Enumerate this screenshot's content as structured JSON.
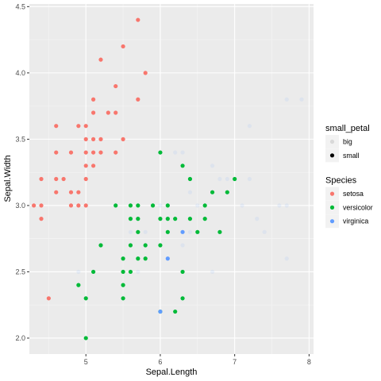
{
  "chart_data": {
    "type": "scatter",
    "xlabel": "Sepal.Length",
    "ylabel": "Sepal.Width",
    "xlim": [
      4.24,
      8.06
    ],
    "ylim": [
      1.88,
      4.52
    ],
    "x_ticks": [
      5,
      6,
      7,
      8
    ],
    "y_ticks": [
      2.0,
      2.5,
      3.0,
      3.5,
      4.0,
      4.5
    ],
    "x_tick_labels": [
      "5",
      "6",
      "7",
      "8"
    ],
    "y_tick_labels": [
      "2.0",
      "2.5",
      "3.0",
      "3.5",
      "4.0",
      "4.5"
    ],
    "grid": true,
    "background": "#ebebeb",
    "legend_position": "right",
    "legends": [
      {
        "title": "small_petal",
        "entries": [
          {
            "label": "big",
            "color": "#000000",
            "alpha": 0.1
          },
          {
            "label": "small",
            "color": "#000000",
            "alpha": 1
          }
        ]
      },
      {
        "title": "Species",
        "entries": [
          {
            "label": "setosa",
            "color": "#F8766D"
          },
          {
            "label": "versicolor",
            "color": "#00BA38"
          },
          {
            "label": "virginica",
            "color": "#619CFF"
          }
        ]
      }
    ],
    "series": [
      {
        "name": "setosa",
        "color": "#F8766D",
        "small_petal": "small",
        "points": [
          [
            4.3,
            3.0
          ],
          [
            4.4,
            2.9
          ],
          [
            4.4,
            3.0
          ],
          [
            4.4,
            3.2
          ],
          [
            4.5,
            2.3
          ],
          [
            4.6,
            3.1
          ],
          [
            4.6,
            3.2
          ],
          [
            4.6,
            3.4
          ],
          [
            4.6,
            3.6
          ],
          [
            4.7,
            3.2
          ],
          [
            4.8,
            3.0
          ],
          [
            4.8,
            3.1
          ],
          [
            4.8,
            3.4
          ],
          [
            4.9,
            3.0
          ],
          [
            4.9,
            3.1
          ],
          [
            4.9,
            3.6
          ],
          [
            5.0,
            3.0
          ],
          [
            5.0,
            3.2
          ],
          [
            5.0,
            3.3
          ],
          [
            5.0,
            3.4
          ],
          [
            5.0,
            3.5
          ],
          [
            5.0,
            3.6
          ],
          [
            5.1,
            3.3
          ],
          [
            5.1,
            3.4
          ],
          [
            5.1,
            3.5
          ],
          [
            5.1,
            3.7
          ],
          [
            5.1,
            3.8
          ],
          [
            5.2,
            3.4
          ],
          [
            5.2,
            3.5
          ],
          [
            5.2,
            4.1
          ],
          [
            5.3,
            3.7
          ],
          [
            5.4,
            3.4
          ],
          [
            5.4,
            3.7
          ],
          [
            5.4,
            3.9
          ],
          [
            5.5,
            3.5
          ],
          [
            5.5,
            4.2
          ],
          [
            5.7,
            3.8
          ],
          [
            5.7,
            4.4
          ],
          [
            5.8,
            4.0
          ]
        ]
      },
      {
        "name": "versicolor",
        "color": "#00BA38",
        "small_petal": "small",
        "points": [
          [
            4.9,
            2.4
          ],
          [
            5.0,
            2.0
          ],
          [
            5.0,
            2.3
          ],
          [
            5.1,
            2.5
          ],
          [
            5.2,
            2.7
          ],
          [
            5.4,
            3.0
          ],
          [
            5.5,
            2.3
          ],
          [
            5.5,
            2.4
          ],
          [
            5.5,
            2.5
          ],
          [
            5.5,
            2.6
          ],
          [
            5.6,
            2.5
          ],
          [
            5.6,
            2.7
          ],
          [
            5.6,
            2.9
          ],
          [
            5.6,
            3.0
          ],
          [
            5.7,
            2.6
          ],
          [
            5.7,
            2.8
          ],
          [
            5.7,
            2.9
          ],
          [
            5.7,
            3.0
          ],
          [
            5.8,
            2.6
          ],
          [
            5.8,
            2.7
          ],
          [
            5.9,
            3.0
          ],
          [
            6.0,
            2.2
          ],
          [
            6.0,
            2.7
          ],
          [
            6.0,
            2.9
          ],
          [
            6.0,
            3.4
          ],
          [
            6.1,
            2.8
          ],
          [
            6.1,
            2.9
          ],
          [
            6.1,
            3.0
          ],
          [
            6.2,
            2.2
          ],
          [
            6.2,
            2.9
          ],
          [
            6.3,
            2.3
          ],
          [
            6.3,
            2.5
          ],
          [
            6.3,
            3.3
          ],
          [
            6.4,
            2.9
          ],
          [
            6.4,
            3.2
          ],
          [
            6.5,
            2.8
          ],
          [
            6.6,
            2.9
          ],
          [
            6.6,
            3.0
          ],
          [
            6.7,
            3.1
          ],
          [
            6.8,
            2.8
          ],
          [
            6.9,
            3.1
          ],
          [
            7.0,
            3.2
          ]
        ]
      },
      {
        "name": "virginica",
        "color": "#619CFF",
        "small_petal": "small",
        "points": [
          [
            6.0,
            2.2
          ],
          [
            6.1,
            2.6
          ],
          [
            6.3,
            2.8
          ]
        ]
      },
      {
        "name": "virginica",
        "color": "#619CFF",
        "small_petal": "big",
        "points": [
          [
            4.9,
            2.5
          ],
          [
            5.6,
            2.8
          ],
          [
            5.7,
            2.5
          ],
          [
            5.8,
            2.7
          ],
          [
            5.8,
            2.8
          ],
          [
            6.0,
            3.0
          ],
          [
            6.2,
            3.4
          ],
          [
            6.3,
            2.7
          ],
          [
            6.3,
            3.4
          ],
          [
            6.4,
            2.8
          ],
          [
            6.4,
            3.1
          ],
          [
            6.5,
            3.0
          ],
          [
            6.7,
            2.5
          ],
          [
            6.7,
            3.3
          ],
          [
            6.8,
            3.2
          ],
          [
            6.9,
            3.2
          ],
          [
            7.1,
            3.0
          ],
          [
            7.2,
            3.2
          ],
          [
            7.2,
            3.6
          ],
          [
            7.3,
            2.9
          ],
          [
            7.4,
            2.8
          ],
          [
            7.6,
            3.0
          ],
          [
            7.7,
            2.6
          ],
          [
            7.7,
            3.0
          ],
          [
            7.7,
            3.8
          ],
          [
            7.9,
            3.8
          ]
        ]
      }
    ]
  }
}
